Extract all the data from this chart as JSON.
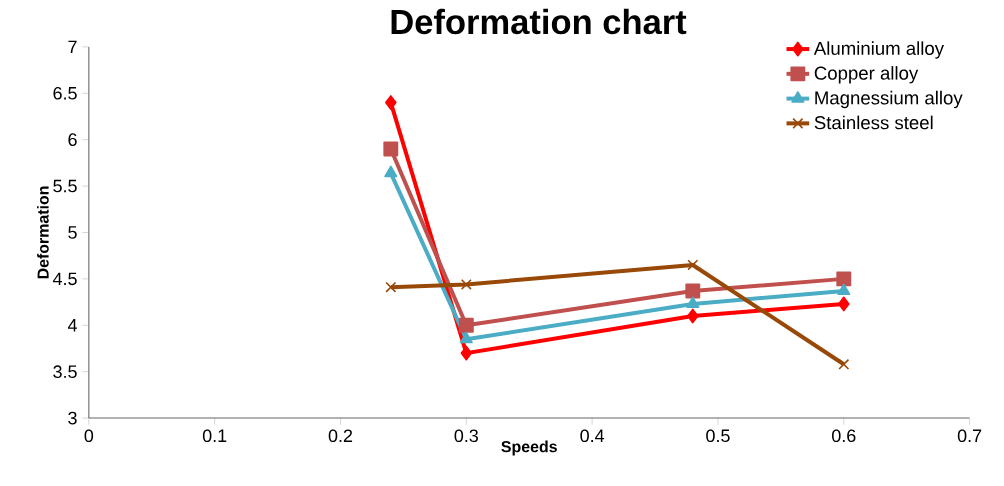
{
  "chart_data": {
    "type": "line",
    "title": "Deformation chart",
    "xlabel": "Speeds",
    "ylabel": "Deformation",
    "x": [
      0.24,
      0.3,
      0.48,
      0.6
    ],
    "series": [
      {
        "name": "Aluminium alloy",
        "color": "#ff0000",
        "marker": "diamond",
        "values": [
          6.4,
          3.7,
          4.1,
          4.23
        ]
      },
      {
        "name": "Copper alloy",
        "color": "#c0504d",
        "marker": "square",
        "values": [
          5.9,
          4.0,
          4.37,
          4.5
        ]
      },
      {
        "name": "Magnessium alloy",
        "color": "#4bacc6",
        "marker": "triangle",
        "values": [
          5.64,
          3.85,
          4.23,
          4.37
        ]
      },
      {
        "name": "Stainless steel",
        "color": "#984807",
        "marker": "cross",
        "values": [
          4.41,
          4.44,
          4.65,
          3.58
        ]
      }
    ],
    "xlim": [
      0,
      0.7
    ],
    "xticks": [
      0,
      0.1,
      0.2,
      0.3,
      0.4,
      0.5,
      0.6,
      0.7
    ],
    "ylim": [
      3,
      7
    ],
    "yticks": [
      3,
      3.5,
      4,
      4.5,
      5,
      5.5,
      6,
      6.5,
      7
    ],
    "legend": "top right",
    "grid": false,
    "line_style": "solid"
  }
}
